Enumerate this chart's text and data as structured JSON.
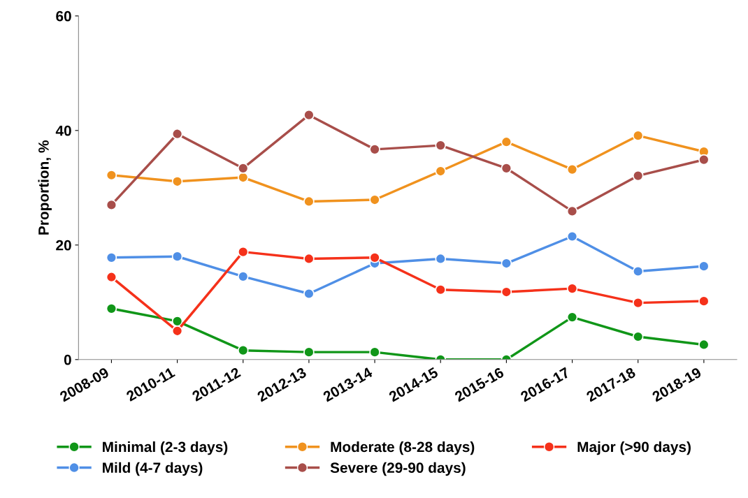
{
  "chart_data": {
    "type": "line",
    "ylabel": "Proportion, %",
    "categories": [
      "2008-09",
      "2010-11",
      "2011-12",
      "2012-13",
      "2013-14",
      "2014-15",
      "2015-16",
      "2016-17",
      "2017-18",
      "2018-19"
    ],
    "series": [
      {
        "name": "Minimal (2-3 days)",
        "color": "#109618",
        "values": [
          8.9,
          6.7,
          1.6,
          1.3,
          1.3,
          0,
          0,
          7.4,
          4.0,
          2.6
        ]
      },
      {
        "name": "Mild (4-7 days)",
        "color": "#4f8fe6",
        "values": [
          17.8,
          18.0,
          14.5,
          11.5,
          16.8,
          17.6,
          16.8,
          21.5,
          15.4,
          16.3
        ]
      },
      {
        "name": "Moderate (8-28 days)",
        "color": "#f0921e",
        "values": [
          32.2,
          31.1,
          31.8,
          27.6,
          27.9,
          32.9,
          38.0,
          33.2,
          39.1,
          36.3
        ]
      },
      {
        "name": "Severe (29-90 days)",
        "color": "#a84e4a",
        "values": [
          27.0,
          39.4,
          33.4,
          42.7,
          36.7,
          37.4,
          33.4,
          25.9,
          32.1,
          34.9
        ]
      },
      {
        "name": "Major (>90 days)",
        "color": "#f5311a",
        "values": [
          14.4,
          5.0,
          18.8,
          17.6,
          17.8,
          12.2,
          11.8,
          12.4,
          9.9,
          10.2
        ]
      }
    ],
    "ylim": [
      0,
      60
    ],
    "yticks": [
      0,
      20,
      40,
      60
    ],
    "grid": false,
    "legend": "bottom",
    "marker": "circle",
    "line_style": "solid"
  }
}
